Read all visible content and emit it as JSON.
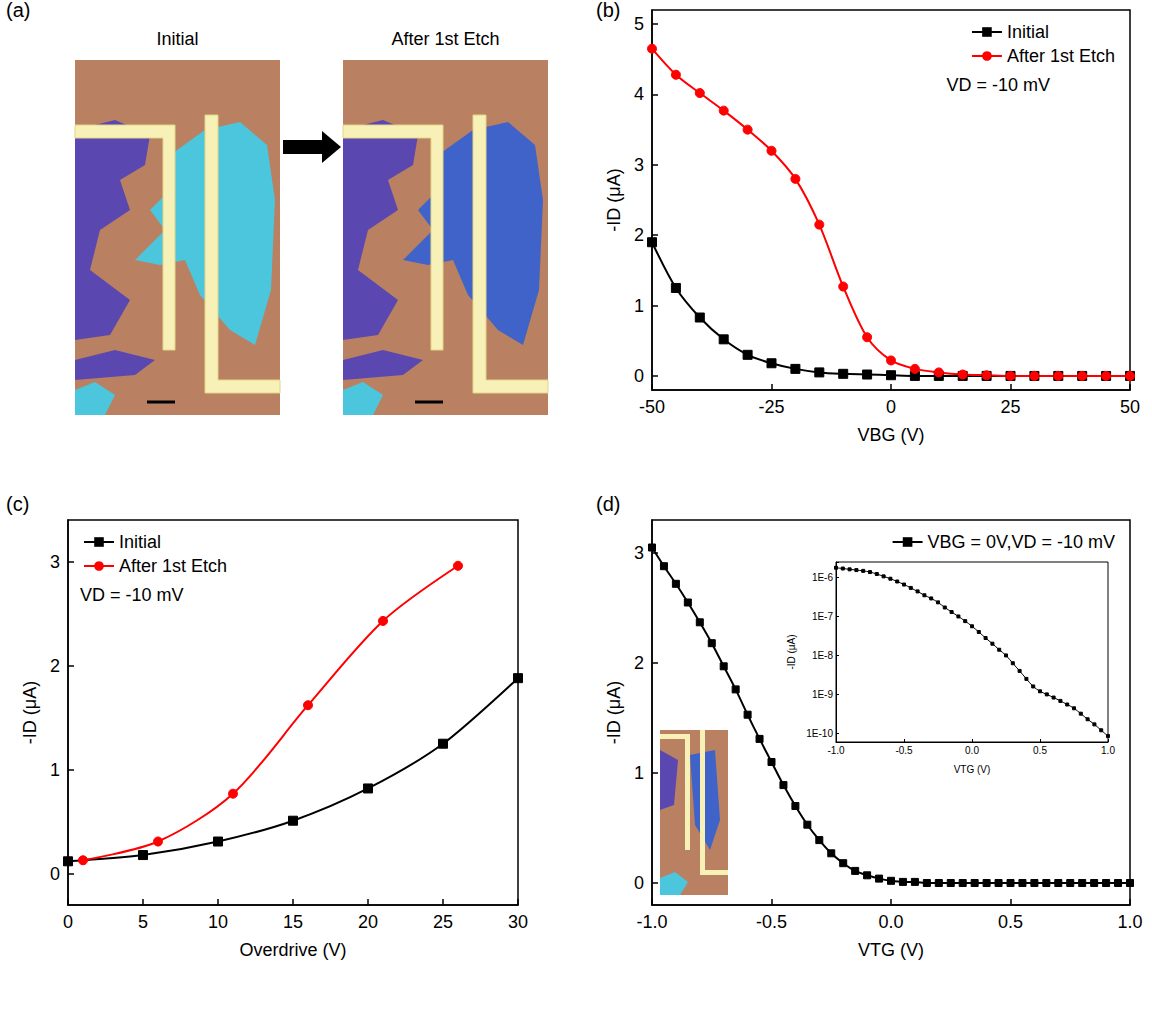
{
  "image_panel": {
    "label": "(a)",
    "captions": [
      "Initial",
      "After 1st Etch"
    ]
  },
  "chart_data": [
    {
      "type": "line",
      "panel": "(b)",
      "xlabel": "VBG (V)",
      "ylabel": "-ID (μA)",
      "xlim": [
        -50,
        50
      ],
      "xticks": [
        -50,
        -25,
        0,
        25,
        50
      ],
      "ylim": [
        -0.2,
        5.2
      ],
      "yticks": [
        0,
        1,
        2,
        3,
        4,
        5
      ],
      "grid": false,
      "legend": "top-right",
      "annotations": [
        "VD = -10 mV"
      ],
      "x": [
        -50,
        -45,
        -40,
        -35,
        -30,
        -25,
        -20,
        -15,
        -10,
        -5,
        0,
        5,
        10,
        15,
        20,
        25,
        30,
        35,
        40,
        45,
        50
      ],
      "series": [
        {
          "name": "Initial",
          "color": "#000000",
          "marker": "square",
          "line_style": "solid",
          "values": [
            1.9,
            1.25,
            0.83,
            0.52,
            0.3,
            0.18,
            0.1,
            0.05,
            0.03,
            0.02,
            0.01,
            0,
            0,
            0,
            0,
            0,
            0,
            0,
            0,
            0,
            0
          ]
        },
        {
          "name": "After 1st Etch",
          "color": "#ff0000",
          "marker": "circle",
          "line_style": "solid",
          "values": [
            4.65,
            4.28,
            4.02,
            3.77,
            3.5,
            3.2,
            2.8,
            2.15,
            1.27,
            0.55,
            0.22,
            0.1,
            0.05,
            0.02,
            0.01,
            0,
            0,
            0,
            0,
            0,
            0
          ]
        }
      ]
    },
    {
      "type": "line",
      "panel": "(c)",
      "xlabel": "Overdrive (V)",
      "ylabel": "-ID (μA)",
      "xlim": [
        0,
        30
      ],
      "xticks": [
        0,
        5,
        10,
        15,
        20,
        25,
        30
      ],
      "ylim": [
        -0.3,
        3.4
      ],
      "yticks": [
        0,
        1,
        2,
        3
      ],
      "grid": false,
      "legend": "top-left",
      "annotations": [
        "VD = -10 mV"
      ],
      "series": [
        {
          "name": "Initial",
          "color": "#000000",
          "marker": "square",
          "line_style": "solid",
          "x": [
            0,
            5,
            10,
            15,
            20,
            25,
            30
          ],
          "values": [
            0.12,
            0.18,
            0.31,
            0.51,
            0.82,
            1.25,
            1.88
          ]
        },
        {
          "name": "After 1st Etch",
          "color": "#ff0000",
          "marker": "circle",
          "line_style": "solid",
          "x": [
            1,
            6,
            11,
            16,
            21,
            26
          ],
          "values": [
            0.13,
            0.31,
            0.77,
            1.62,
            2.43,
            2.96
          ]
        }
      ]
    },
    {
      "type": "line",
      "panel": "(d)",
      "xlabel": "VTG (V)",
      "ylabel": "-ID (μA)",
      "xlim": [
        -1,
        1
      ],
      "xticks": [
        {
          "value": -1,
          "label": "-1.0"
        },
        -0.5,
        {
          "value": 0,
          "label": "0.0"
        },
        0.5,
        {
          "value": 1,
          "label": "1.0"
        }
      ],
      "ylim": [
        -0.2,
        3.3
      ],
      "yticks": [
        0,
        1,
        2,
        3
      ],
      "grid": false,
      "legend": "top-right",
      "x": [
        -1,
        -0.95,
        -0.9,
        -0.85,
        -0.8,
        -0.75,
        -0.7,
        -0.65,
        -0.6,
        -0.55,
        -0.5,
        -0.45,
        -0.4,
        -0.35,
        -0.3,
        -0.25,
        -0.2,
        -0.15,
        -0.1,
        -0.05,
        0,
        0.05,
        0.1,
        0.15,
        0.2,
        0.25,
        0.3,
        0.35,
        0.4,
        0.45,
        0.5,
        0.55,
        0.6,
        0.65,
        0.7,
        0.75,
        0.8,
        0.85,
        0.9,
        0.95,
        1
      ],
      "series": [
        {
          "name": "VBG = 0V,VD = -10 mV",
          "color": "#000000",
          "marker": "square",
          "line_style": "solid",
          "values": [
            3.05,
            2.88,
            2.72,
            2.55,
            2.37,
            2.18,
            1.97,
            1.76,
            1.53,
            1.31,
            1.1,
            0.89,
            0.7,
            0.53,
            0.39,
            0.27,
            0.18,
            0.11,
            0.07,
            0.04,
            0.02,
            0.01,
            0.01,
            0,
            0,
            0,
            0,
            0,
            0,
            0,
            0,
            0,
            0,
            0,
            0,
            0,
            0,
            0,
            0,
            0,
            0
          ]
        }
      ]
    },
    {
      "type": "line",
      "xlabel": "VTG (V)",
      "ylabel": "-ID (μA)",
      "log": "y",
      "xlim": [
        -1,
        1
      ],
      "xticks": [
        {
          "value": -1,
          "label": "-1.0"
        },
        -0.5,
        {
          "value": 0,
          "label": "0.0"
        },
        0.5,
        {
          "value": 1,
          "label": "1.0"
        }
      ],
      "ylim": [
        6e-11,
        2.5e-06
      ],
      "yticks": [
        {
          "value": 1e-10,
          "label": "1E-10"
        },
        {
          "value": 1e-09,
          "label": "1E-9"
        },
        {
          "value": 1e-08,
          "label": "1E-8"
        },
        {
          "value": 1e-07,
          "label": "1E-7"
        },
        {
          "value": 1e-06,
          "label": "1E-6"
        }
      ],
      "grid": false,
      "x": [
        -1,
        -0.95,
        -0.9,
        -0.85,
        -0.8,
        -0.75,
        -0.7,
        -0.65,
        -0.6,
        -0.55,
        -0.5,
        -0.45,
        -0.4,
        -0.35,
        -0.3,
        -0.25,
        -0.2,
        -0.15,
        -0.1,
        -0.05,
        0,
        0.05,
        0.1,
        0.15,
        0.2,
        0.25,
        0.3,
        0.35,
        0.4,
        0.45,
        0.5,
        0.55,
        0.6,
        0.65,
        0.7,
        0.75,
        0.8,
        0.85,
        0.9,
        0.95,
        1
      ],
      "series": [
        {
          "color": "#000000",
          "marker": "square",
          "line_style": "solid",
          "values": [
            1.78e-06,
            1.7e-06,
            1.62e-06,
            1.55e-06,
            1.48e-06,
            1.38e-06,
            1.23e-06,
            1.07e-06,
            9.3e-07,
            7.9e-07,
            6.6e-07,
            5.4e-07,
            4.4e-07,
            3.5e-07,
            2.9e-07,
            2.3e-07,
            1.7e-07,
            1.3e-07,
            1e-07,
            7.6e-08,
            5.6e-08,
            4e-08,
            2.8e-08,
            2e-08,
            1.4e-08,
            1e-08,
            6.3e-09,
            4e-09,
            2.5e-09,
            1.6e-09,
            1.2e-09,
            1e-09,
            8.3e-10,
            6.8e-10,
            5.5e-10,
            4.4e-10,
            3.2e-10,
            2.3e-10,
            1.7e-10,
            1.2e-10,
            8.5e-11
          ]
        }
      ]
    }
  ]
}
